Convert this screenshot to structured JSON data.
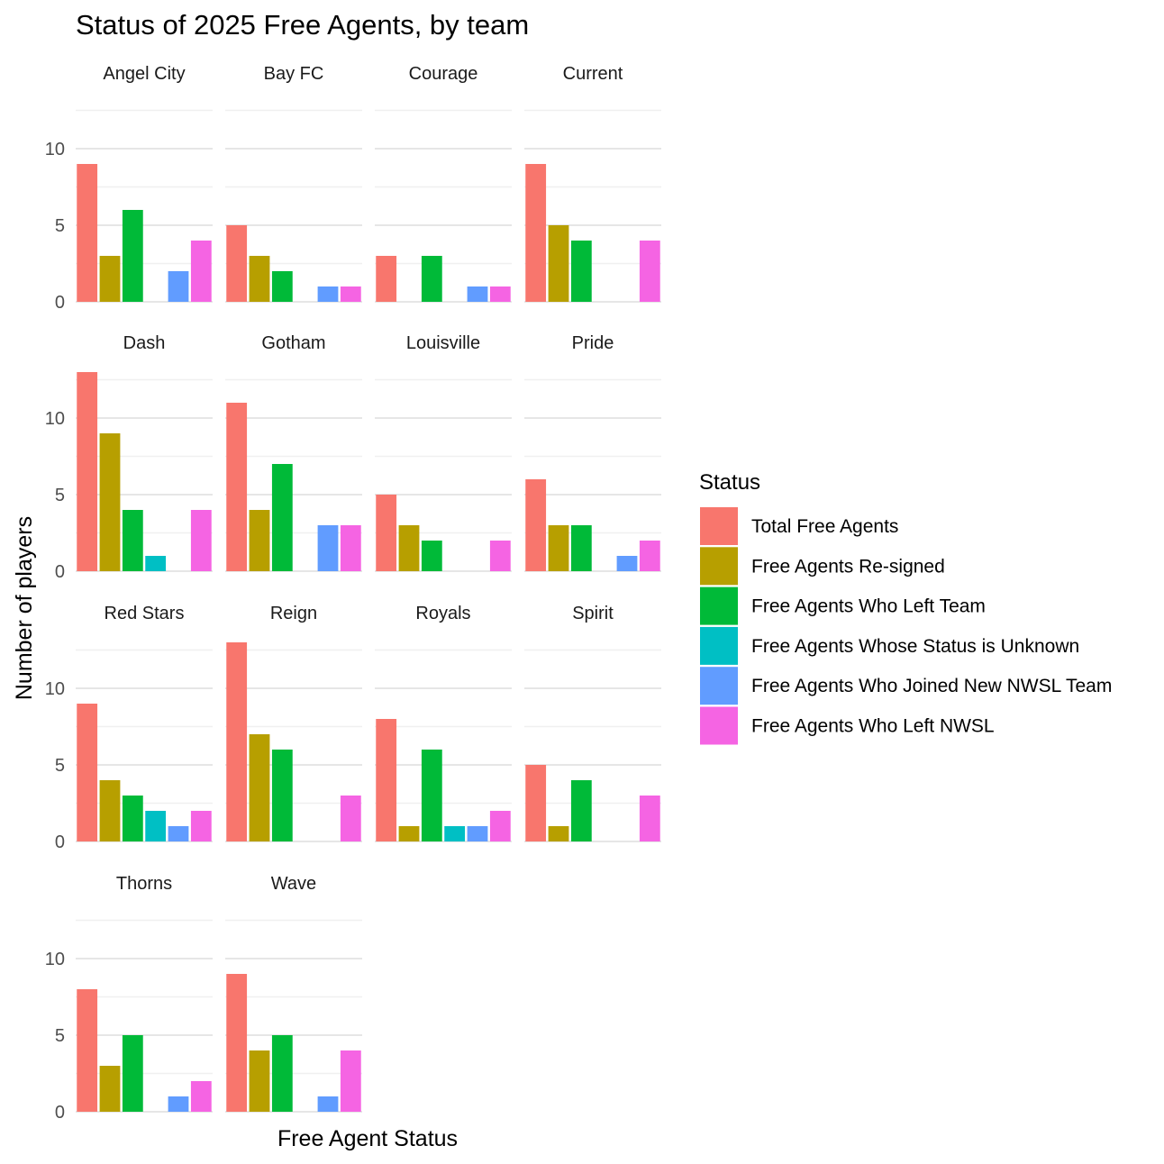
{
  "chart_data": {
    "type": "bar",
    "title": "Status of 2025 Free Agents, by team",
    "xlabel": "Free Agent Status",
    "ylabel": "Number of players",
    "ylim": [
      0,
      13.6
    ],
    "yticks": [
      0,
      5,
      10
    ],
    "grid": true,
    "legend": {
      "title": "Status",
      "position": "right"
    },
    "categories": [
      "Total Free Agents",
      "Free Agents Re-signed",
      "Free Agents Who Left Team",
      "Free Agents Whose Status is Unknown",
      "Free Agents Who Joined New NWSL Team",
      "Free Agents Who Left NWSL"
    ],
    "colors": [
      "#F8766D",
      "#B79F00",
      "#00BA38",
      "#00BFC4",
      "#619CFF",
      "#F564E3"
    ],
    "facets": [
      {
        "name": "Angel City",
        "values": [
          9,
          3,
          6,
          0,
          2,
          4
        ]
      },
      {
        "name": "Bay FC",
        "values": [
          5,
          3,
          2,
          0,
          1,
          1
        ]
      },
      {
        "name": "Courage",
        "values": [
          3,
          0,
          3,
          0,
          1,
          1
        ]
      },
      {
        "name": "Current",
        "values": [
          9,
          5,
          4,
          0,
          0,
          4
        ]
      },
      {
        "name": "Dash",
        "values": [
          13,
          9,
          4,
          1,
          0,
          4
        ]
      },
      {
        "name": "Gotham",
        "values": [
          11,
          4,
          7,
          0,
          3,
          3
        ]
      },
      {
        "name": "Louisville",
        "values": [
          5,
          3,
          2,
          0,
          0,
          2
        ]
      },
      {
        "name": "Pride",
        "values": [
          6,
          3,
          3,
          0,
          1,
          2
        ]
      },
      {
        "name": "Red Stars",
        "values": [
          9,
          4,
          3,
          2,
          1,
          2
        ]
      },
      {
        "name": "Reign",
        "values": [
          13,
          7,
          6,
          0,
          0,
          3
        ]
      },
      {
        "name": "Royals",
        "values": [
          8,
          1,
          6,
          1,
          1,
          2
        ]
      },
      {
        "name": "Spirit",
        "values": [
          5,
          1,
          4,
          0,
          0,
          3
        ]
      },
      {
        "name": "Thorns",
        "values": [
          8,
          3,
          5,
          0,
          1,
          2
        ]
      },
      {
        "name": "Wave",
        "values": [
          9,
          4,
          5,
          0,
          1,
          4
        ]
      }
    ]
  }
}
